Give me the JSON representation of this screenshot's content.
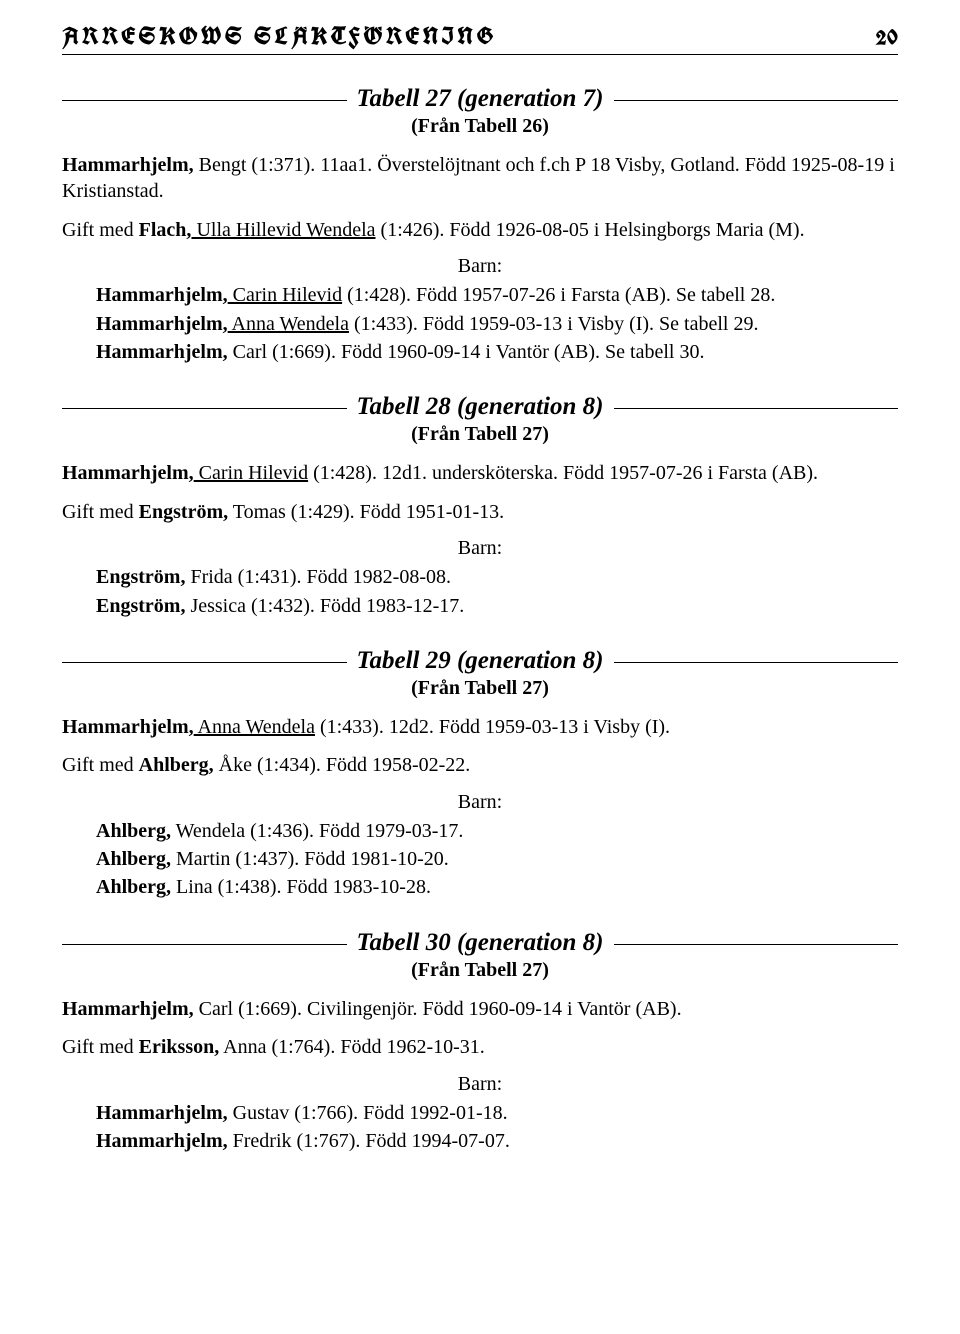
{
  "header": {
    "title": "ARRESKOWS SLÄKTFÖRENING",
    "page": "20"
  },
  "colors": {
    "text": "#000000",
    "bg": "#ffffff",
    "rule": "#000000"
  },
  "typography": {
    "body_pt": 20,
    "title_pt": 25,
    "header_pt": 24,
    "sub_pt": 20,
    "line_height": 1.32
  },
  "labels": {
    "barn": "Barn:"
  },
  "t27": {
    "title": "Tabell 27 (generation 7)",
    "sub": "(Från Tabell 26)",
    "p1_b": "Hammarhjelm,",
    "p1_rest": " Bengt (1:371). 11aa1. Överstelöjtnant och f.ch P 18 Visby, Gotland. Född 1925-08-19 i Kristianstad.",
    "p2_pre": "Gift med ",
    "p2_b": "Flach,",
    "p2_u": " Ulla Hillevid Wendela",
    "p2_rest": " (1:426). Född 1926-08-05 i Helsingborgs Maria (M).",
    "c1_b": "Hammarhjelm,",
    "c1_u": " Carin Hilevid",
    "c1_rest": " (1:428). Född 1957-07-26 i Farsta (AB). Se tabell 28.",
    "c2_b": "Hammarhjelm,",
    "c2_u": " Anna Wendela",
    "c2_rest": " (1:433). Född 1959-03-13 i Visby (I). Se tabell 29.",
    "c3_b": "Hammarhjelm,",
    "c3_rest": " Carl (1:669). Född 1960-09-14 i Vantör (AB). Se tabell 30."
  },
  "t28": {
    "title": "Tabell 28 (generation 8)",
    "sub": "(Från Tabell 27)",
    "p1_b": "Hammarhjelm,",
    "p1_u": " Carin Hilevid",
    "p1_rest": " (1:428). 12d1. undersköterska. Född 1957-07-26 i Farsta (AB).",
    "p2_pre": "Gift med ",
    "p2_b": "Engström,",
    "p2_rest": " Tomas (1:429). Född 1951-01-13.",
    "c1_b": "Engström,",
    "c1_rest": " Frida (1:431). Född 1982-08-08.",
    "c2_b": "Engström,",
    "c2_rest": " Jessica (1:432). Född 1983-12-17."
  },
  "t29": {
    "title": "Tabell 29 (generation 8)",
    "sub": "(Från Tabell 27)",
    "p1_b": "Hammarhjelm,",
    "p1_u": " Anna Wendela",
    "p1_rest": " (1:433). 12d2. Född 1959-03-13 i Visby (I).",
    "p2_pre": "Gift med ",
    "p2_b": "Ahlberg,",
    "p2_rest": " Åke (1:434). Född 1958-02-22.",
    "c1_b": "Ahlberg,",
    "c1_rest": " Wendela (1:436). Född 1979-03-17.",
    "c2_b": "Ahlberg,",
    "c2_rest": " Martin (1:437). Född 1981-10-20.",
    "c3_b": "Ahlberg,",
    "c3_rest": " Lina (1:438). Född 1983-10-28."
  },
  "t30": {
    "title": "Tabell 30 (generation 8)",
    "sub": "(Från Tabell 27)",
    "p1_b": "Hammarhjelm,",
    "p1_rest": " Carl (1:669). Civilingenjör. Född 1960-09-14 i Vantör (AB).",
    "p2_pre": "Gift med ",
    "p2_b": "Eriksson,",
    "p2_rest": " Anna (1:764). Född 1962-10-31.",
    "c1_b": "Hammarhjelm,",
    "c1_rest": " Gustav (1:766). Född 1992-01-18.",
    "c2_b": "Hammarhjelm,",
    "c2_rest": " Fredrik (1:767). Född 1994-07-07."
  }
}
